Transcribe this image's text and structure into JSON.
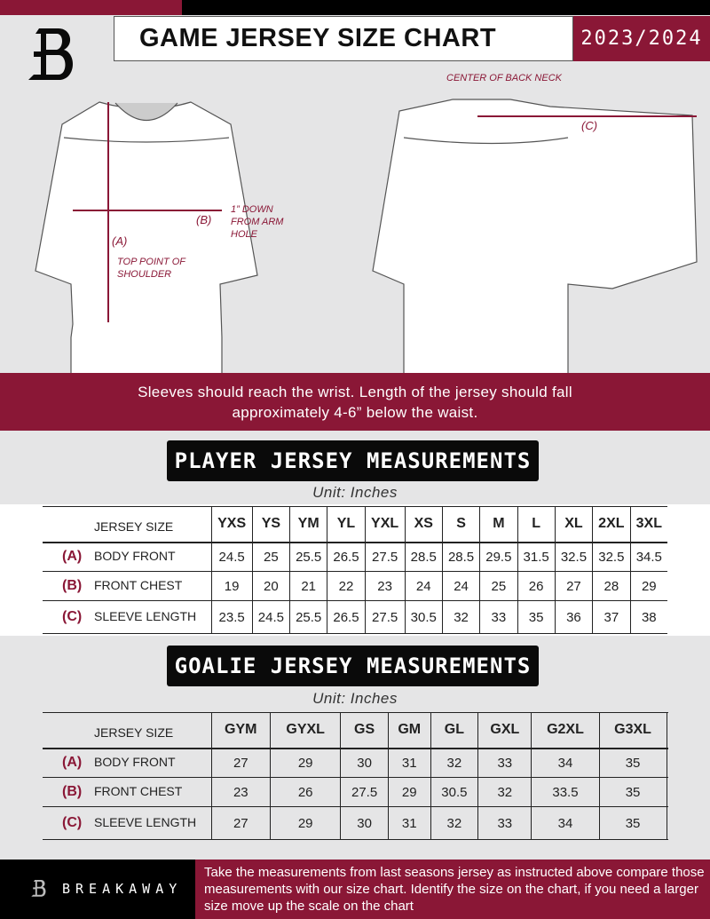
{
  "header": {
    "title": "GAME JERSEY SIZE CHART",
    "season": "2023/2024",
    "logo_text": "B"
  },
  "diagram": {
    "center_back_neck": "CENTER OF BACK NECK",
    "label_a": "(A)",
    "label_b": "(B)",
    "label_c": "(C)",
    "down_from_armhole": "1” DOWN FROM ARM HOLE",
    "top_point_shoulder": "TOP POINT OF SHOULDER"
  },
  "instructions": {
    "line1": "Sleeves should reach the wrist. Length of the jersey should fall",
    "line2": "approximately 4-6” below the waist."
  },
  "player": {
    "heading": "PLAYER JERSEY MEASUREMENTS",
    "unit": "Unit: Inches",
    "size_label": "JERSEY SIZE",
    "sizes": [
      "YXS",
      "YS",
      "YM",
      "YL",
      "YXL",
      "XS",
      "S",
      "M",
      "L",
      "XL",
      "2XL",
      "3XL"
    ],
    "rows": [
      {
        "letter": "(A)",
        "label": "BODY FRONT",
        "values": [
          "24.5",
          "25",
          "25.5",
          "26.5",
          "27.5",
          "28.5",
          "28.5",
          "29.5",
          "31.5",
          "32.5",
          "32.5",
          "34.5"
        ]
      },
      {
        "letter": "(B)",
        "label": "FRONT CHEST",
        "values": [
          "19",
          "20",
          "21",
          "22",
          "23",
          "24",
          "24",
          "25",
          "26",
          "27",
          "28",
          "29"
        ]
      },
      {
        "letter": "(C)",
        "label": "SLEEVE LENGTH",
        "values": [
          "23.5",
          "24.5",
          "25.5",
          "26.5",
          "27.5",
          "30.5",
          "32",
          "33",
          "35",
          "36",
          "37",
          "38"
        ]
      }
    ]
  },
  "goalie": {
    "heading": "GOALIE JERSEY MEASUREMENTS",
    "unit": "Unit: Inches",
    "size_label": "JERSEY SIZE",
    "sizes": [
      "GYM",
      "GYXL",
      "GS",
      "GM",
      "GL",
      "GXL",
      "G2XL",
      "G3XL",
      ""
    ],
    "rows": [
      {
        "letter": "(A)",
        "label": "BODY FRONT",
        "values": [
          "27",
          "29",
          "30",
          "31",
          "32",
          "33",
          "34",
          "35",
          ""
        ]
      },
      {
        "letter": "(B)",
        "label": "FRONT CHEST",
        "values": [
          "23",
          "26",
          "27.5",
          "29",
          "30.5",
          "32",
          "33.5",
          "35",
          ""
        ]
      },
      {
        "letter": "(C)",
        "label": "SLEEVE LENGTH",
        "values": [
          "27",
          "29",
          "30",
          "31",
          "32",
          "33",
          "34",
          "35",
          ""
        ]
      }
    ]
  },
  "footer": {
    "brand": "BREAKAWAY",
    "text": "Take the measurements from last seasons jersey as instructed above compare those measurements  with our size chart. Identify the size on the chart, if you need a larger size move up the scale on the chart"
  },
  "colors": {
    "accent": "#8a1736",
    "dark": "#0a0a0a",
    "background": "#e5e5e6"
  }
}
